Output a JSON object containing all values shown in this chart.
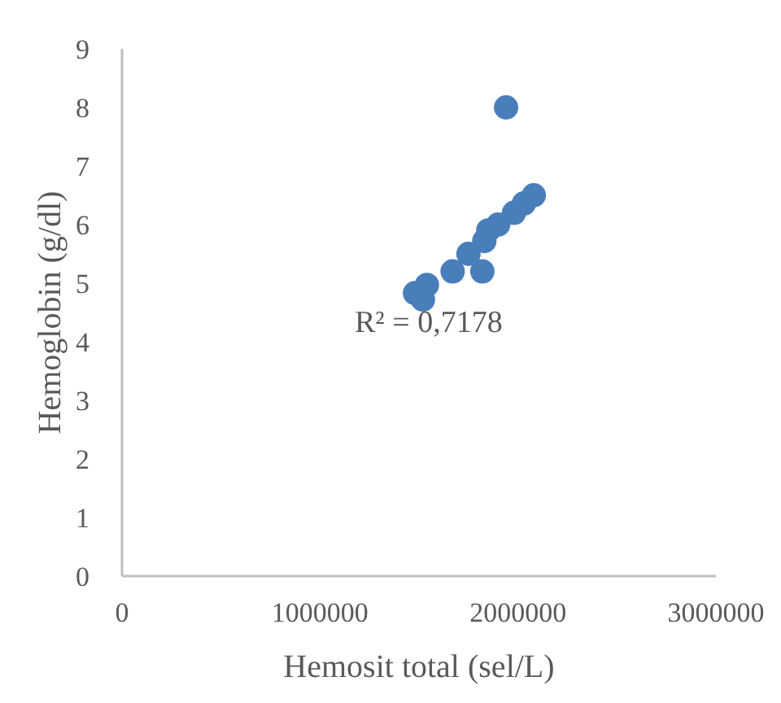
{
  "chart_data": {
    "type": "scatter",
    "xlabel": "Hemosit total (sel/L)",
    "ylabel": "Hemoglobin (g/dl)",
    "annotations": [
      "R² = 0,7178"
    ],
    "x": [
      1940000,
      2080000,
      2030000,
      1980000,
      1900000,
      1850000,
      1830000,
      1820000,
      1750000,
      1670000,
      1540000,
      1480000,
      1520000
    ],
    "series": [
      {
        "color": "#4a7ebb",
        "values": [
          8.0,
          6.5,
          6.36,
          6.2,
          6.0,
          5.9,
          5.72,
          5.2,
          5.5,
          5.2,
          4.97,
          4.83,
          4.72
        ]
      }
    ],
    "xlim": [
      0,
      3000000
    ],
    "xticks": [
      0,
      1000000,
      2000000,
      3000000
    ],
    "ylim": [
      0,
      9
    ],
    "yticks": [
      0,
      1,
      2,
      3,
      4,
      5,
      6,
      7,
      8,
      9
    ],
    "grid": false,
    "legend": false,
    "marker": "circle"
  }
}
